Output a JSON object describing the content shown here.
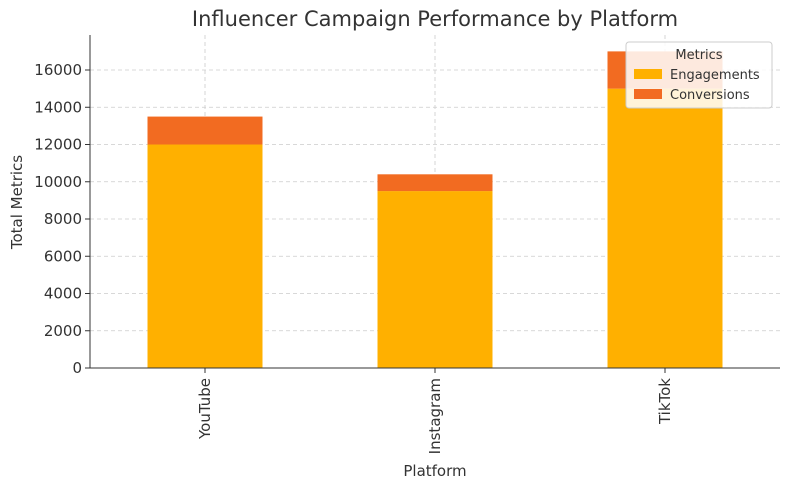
{
  "chart_data": {
    "type": "stacked-bar",
    "title": "Influencer Campaign Performance by Platform",
    "x_label": "Platform",
    "y_label": "Total Metrics",
    "categories": [
      "YouTube",
      "Instagram",
      "TikTok"
    ],
    "series": [
      {
        "name": "Engagements",
        "color": "#ffb000",
        "values": [
          12000,
          9500,
          15000
        ]
      },
      {
        "name": "Conversions",
        "color": "#f26b21",
        "values": [
          1500,
          900,
          2000
        ]
      }
    ],
    "ylim": [
      0,
      17880
    ],
    "yticks": [
      0,
      2000,
      4000,
      6000,
      8000,
      10000,
      12000,
      14000,
      16000
    ],
    "grid": true,
    "legend_title": "Metrics",
    "legend": "upper right"
  }
}
